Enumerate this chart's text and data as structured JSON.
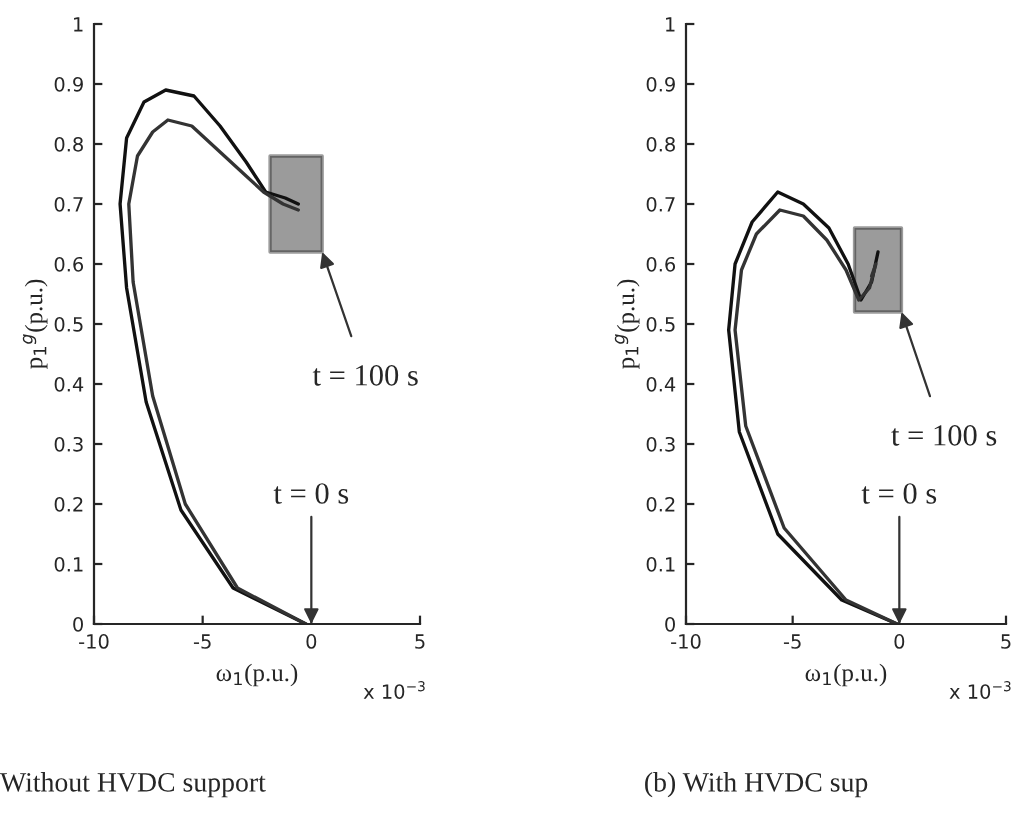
{
  "chart_data": [
    {
      "type": "line",
      "title": "Without HVDC support",
      "xlabel": "ω$_{1}$(p.u.)",
      "ylabel": "p$_{1}$$^{g}$(p.u.)",
      "xlim": [
        -10,
        5
      ],
      "xticks": [
        -10,
        -5,
        0,
        5
      ],
      "ylim": [
        0,
        1
      ],
      "yticks": [
        0,
        0.1,
        0.2,
        0.3,
        0.4,
        0.5,
        0.6,
        0.7,
        0.8,
        0.9,
        1
      ],
      "grid": false,
      "legend": false,
      "series": [
        {
          "color": "#111111",
          "x": [
            -0.25,
            -3.6,
            -6.0,
            -7.6,
            -8.5,
            -8.8,
            -8.5,
            -7.7,
            -6.7,
            -5.4,
            -4.2,
            -3.0,
            -2.1,
            -1.2,
            -0.6
          ],
          "values": [
            0,
            0.06,
            0.19,
            0.37,
            0.56,
            0.7,
            0.81,
            0.87,
            0.89,
            0.88,
            0.83,
            0.77,
            0.72,
            0.71,
            0.7
          ]
        },
        {
          "color": "#333333",
          "x": [
            -0.25,
            -3.4,
            -5.8,
            -7.3,
            -8.2,
            -8.4,
            -8.0,
            -7.3,
            -6.6,
            -5.5,
            -4.3,
            -3.1,
            -2.2,
            -1.3,
            -0.6
          ],
          "values": [
            0,
            0.06,
            0.2,
            0.38,
            0.57,
            0.7,
            0.78,
            0.82,
            0.84,
            0.83,
            0.79,
            0.75,
            0.72,
            0.7,
            0.69
          ]
        },
        {
          "color": "#222222",
          "x": [
            -1.9,
            0.5
          ],
          "values": [
            null,
            null
          ],
          "lower": [
            0.62,
            0.62
          ],
          "upper": [
            0.78,
            0.78
          ]
        }
      ],
      "annotations": [
        {
          "text": "t = 100 s",
          "x": 0.5,
          "y": 0.62
        },
        {
          "text": "t = 0 s",
          "x": 0,
          "y": 0
        },
        "x 10$^{−3}$"
      ]
    },
    {
      "type": "line",
      "title": "(b) With HVDC sup",
      "xlabel": "ω$_{1}$(p.u.)",
      "ylabel": "p$_{1}$$^{g}$(p.u.)",
      "xlim": [
        -10,
        5
      ],
      "xticks": [
        -10,
        -5,
        0,
        5
      ],
      "ylim": [
        0,
        1
      ],
      "yticks": [
        0,
        0.1,
        0.2,
        0.3,
        0.4,
        0.5,
        0.6,
        0.7,
        0.8,
        0.9,
        1
      ],
      "grid": false,
      "legend": false,
      "series": [
        {
          "color": "#111111",
          "x": [
            -0.1,
            -2.7,
            -5.7,
            -7.5,
            -8.0,
            -7.7,
            -6.9,
            -5.7,
            -4.5,
            -3.3,
            -2.4,
            -1.8,
            -1.3,
            -1.0
          ],
          "values": [
            0,
            0.04,
            0.15,
            0.32,
            0.49,
            0.6,
            0.67,
            0.72,
            0.7,
            0.66,
            0.6,
            0.54,
            0.57,
            0.62
          ]
        },
        {
          "color": "#333333",
          "x": [
            -0.1,
            -2.5,
            -5.4,
            -7.2,
            -7.7,
            -7.4,
            -6.7,
            -5.6,
            -4.5,
            -3.4,
            -2.5,
            -1.9,
            -1.4,
            -1.1,
            -1.3
          ],
          "values": [
            0,
            0.04,
            0.16,
            0.33,
            0.49,
            0.59,
            0.65,
            0.69,
            0.68,
            0.64,
            0.59,
            0.54,
            0.56,
            0.6,
            0.58
          ]
        },
        {
          "color": "#222222",
          "x": [
            -2.1,
            0.1
          ],
          "values": [
            null,
            null
          ],
          "lower": [
            0.52,
            0.52
          ],
          "upper": [
            0.66,
            0.66
          ]
        }
      ],
      "annotations": [
        {
          "text": "t = 100 s",
          "x": 0.1,
          "y": 0.52
        },
        {
          "text": "t = 0 s",
          "x": 0,
          "y": 0
        },
        "x 10$^{−3}$"
      ]
    }
  ]
}
